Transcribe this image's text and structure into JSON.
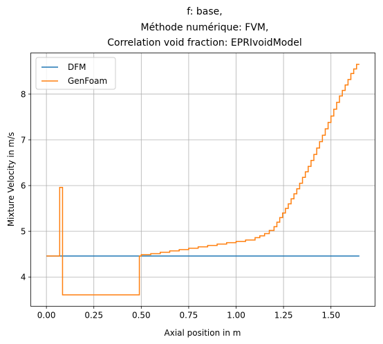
{
  "chart_data": {
    "type": "line",
    "title": [
      "f: base,",
      "Méthode numérique: FVM,",
      "Correlation void fraction: EPRIvoidModel"
    ],
    "xlabel": "Axial position in m",
    "ylabel": "Mixture Velocity in m/s",
    "xlim": [
      -0.0825,
      1.7325
    ],
    "ylim": [
      3.36,
      8.9
    ],
    "xticks": [
      0.0,
      0.25,
      0.5,
      0.75,
      1.0,
      1.25,
      1.5
    ],
    "xtick_labels": [
      "0.00",
      "0.25",
      "0.50",
      "0.75",
      "1.00",
      "1.25",
      "1.50"
    ],
    "yticks": [
      4,
      5,
      6,
      7,
      8
    ],
    "ytick_labels": [
      "4",
      "5",
      "6",
      "7",
      "8"
    ],
    "grid": true,
    "legend_position": "top-left",
    "series": [
      {
        "name": "DFM",
        "color": "#1f77b4",
        "step": false,
        "x": [
          0.0,
          1.65
        ],
        "y": [
          4.46,
          4.46
        ]
      },
      {
        "name": "GenFoam",
        "color": "#ff7f0e",
        "step": true,
        "x": [
          0.0,
          0.07,
          0.085,
          0.49,
          0.5,
          0.55,
          0.6,
          0.65,
          0.7,
          0.75,
          0.8,
          0.85,
          0.9,
          0.95,
          1.0,
          1.05,
          1.1,
          1.125,
          1.15,
          1.175,
          1.2,
          1.215,
          1.23,
          1.245,
          1.26,
          1.275,
          1.29,
          1.305,
          1.32,
          1.335,
          1.35,
          1.365,
          1.38,
          1.395,
          1.41,
          1.425,
          1.44,
          1.455,
          1.47,
          1.485,
          1.5,
          1.515,
          1.53,
          1.545,
          1.56,
          1.575,
          1.59,
          1.605,
          1.62,
          1.635,
          1.65
        ],
        "y": [
          4.46,
          5.96,
          3.61,
          4.46,
          4.49,
          4.51,
          4.54,
          4.57,
          4.6,
          4.63,
          4.66,
          4.69,
          4.72,
          4.75,
          4.78,
          4.81,
          4.86,
          4.9,
          4.95,
          5.02,
          5.1,
          5.2,
          5.3,
          5.4,
          5.5,
          5.6,
          5.71,
          5.82,
          5.93,
          6.05,
          6.18,
          6.3,
          6.42,
          6.55,
          6.68,
          6.82,
          6.96,
          7.1,
          7.24,
          7.38,
          7.52,
          7.67,
          7.82,
          7.96,
          8.08,
          8.2,
          8.32,
          8.45,
          8.55,
          8.65,
          8.65
        ]
      }
    ]
  }
}
